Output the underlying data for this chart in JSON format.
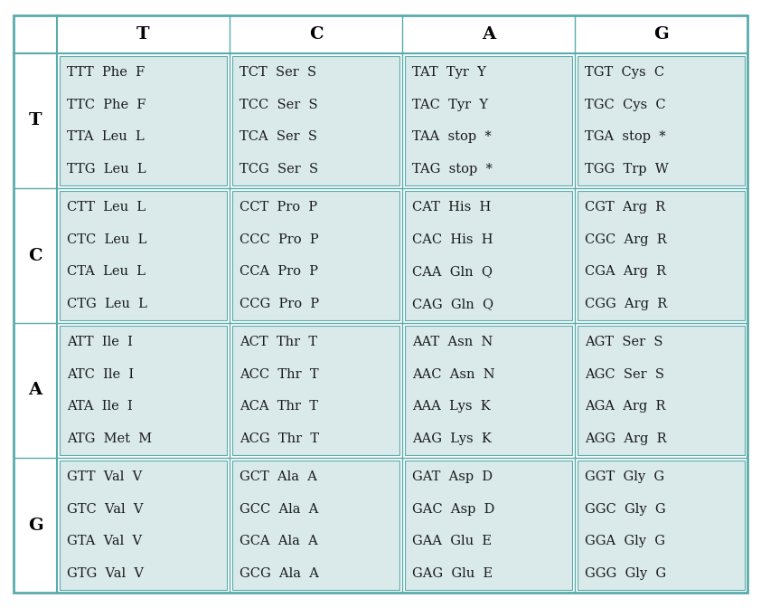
{
  "col_headers": [
    "T",
    "C",
    "A",
    "G"
  ],
  "row_headers": [
    "T",
    "C",
    "A",
    "G"
  ],
  "cells": [
    [
      [
        "TTT  Phe  F",
        "TTC  Phe  F",
        "TTA  Leu  L",
        "TTG  Leu  L"
      ],
      [
        "TCT  Ser  S",
        "TCC  Ser  S",
        "TCA  Ser  S",
        "TCG  Ser  S"
      ],
      [
        "TAT  Tyr  Y",
        "TAC  Tyr  Y",
        "TAA  stop  *",
        "TAG  stop  *"
      ],
      [
        "TGT  Cys  C",
        "TGC  Cys  C",
        "TGA  stop  *",
        "TGG  Trp  W"
      ]
    ],
    [
      [
        "CTT  Leu  L",
        "CTC  Leu  L",
        "CTA  Leu  L",
        "CTG  Leu  L"
      ],
      [
        "CCT  Pro  P",
        "CCC  Pro  P",
        "CCA  Pro  P",
        "CCG  Pro  P"
      ],
      [
        "CAT  His  H",
        "CAC  His  H",
        "CAA  Gln  Q",
        "CAG  Gln  Q"
      ],
      [
        "CGT  Arg  R",
        "CGC  Arg  R",
        "CGA  Arg  R",
        "CGG  Arg  R"
      ]
    ],
    [
      [
        "ATT  Ile  I",
        "ATC  Ile  I",
        "ATA  Ile  I",
        "ATG  Met  M"
      ],
      [
        "ACT  Thr  T",
        "ACC  Thr  T",
        "ACA  Thr  T",
        "ACG  Thr  T"
      ],
      [
        "AAT  Asn  N",
        "AAC  Asn  N",
        "AAA  Lys  K",
        "AAG  Lys  K"
      ],
      [
        "AGT  Ser  S",
        "AGC  Ser  S",
        "AGA  Arg  R",
        "AGG  Arg  R"
      ]
    ],
    [
      [
        "GTT  Val  V",
        "GTC  Val  V",
        "GTA  Val  V",
        "GTG  Val  V"
      ],
      [
        "GCT  Ala  A",
        "GCC  Ala  A",
        "GCA  Ala  A",
        "GCG  Ala  A"
      ],
      [
        "GAT  Asp  D",
        "GAC  Asp  D",
        "GAA  Glu  E",
        "GAG  Glu  E"
      ],
      [
        "GGT  Gly  G",
        "GGC  Gly  G",
        "GGA  Gly  G",
        "GGG  Gly  G"
      ]
    ]
  ],
  "cell_bg_color": "#daeaea",
  "outer_bg_color": "#ffffff",
  "border_color": "#5aabab",
  "text_color": "#1a1a1a",
  "header_color": "#000000",
  "font_size": 10.5,
  "header_font_size": 14,
  "row_header_font_size": 14
}
